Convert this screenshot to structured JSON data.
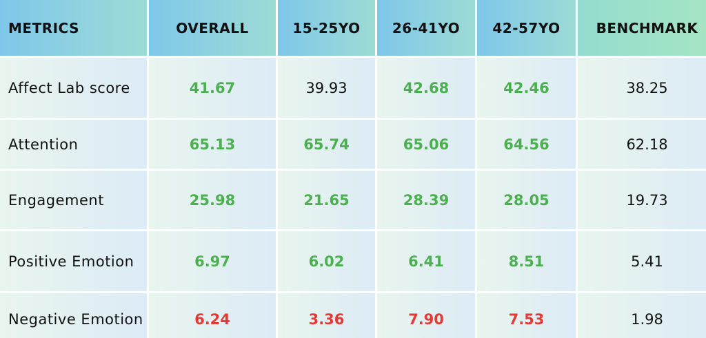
{
  "table": {
    "header": [
      "METRICS",
      "OVERALL",
      "15-25YO",
      "26-41YO",
      "42-57YO",
      "BENCHMARK"
    ],
    "rows": [
      [
        "Affect Lab score",
        {
          "value": "41.67",
          "color": "#4caf50"
        },
        "39.93",
        {
          "value": "42.68",
          "color": "#4caf50"
        },
        {
          "value": "42.46",
          "color": "#4caf50"
        },
        "38.25"
      ],
      [
        "Attention",
        {
          "value": "65.13",
          "color": "#4caf50"
        },
        {
          "value": "65.74",
          "color": "#4caf50"
        },
        {
          "value": "65.06",
          "color": "#4caf50"
        },
        {
          "value": "64.56",
          "color": "#4caf50"
        },
        "62.18"
      ],
      [
        "Engagement",
        {
          "value": "25.98",
          "color": "#4caf50"
        },
        {
          "value": "21.65",
          "color": "#4caf50"
        },
        {
          "value": "28.39",
          "color": "#4caf50"
        },
        {
          "value": "28.05",
          "color": "#4caf50"
        },
        "19.73"
      ],
      [
        "Positive Emotion",
        {
          "value": "6.97",
          "color": "#4caf50"
        },
        {
          "value": "6.02",
          "color": "#4caf50"
        },
        {
          "value": "6.41",
          "color": "#4caf50"
        },
        {
          "value": "8.51",
          "color": "#4caf50"
        },
        "5.41"
      ],
      [
        "Negative Emotion",
        {
          "value": "6.24",
          "color": "#e53935"
        },
        {
          "value": "3.36",
          "color": "#e53935"
        },
        {
          "value": "7.90",
          "color": "#e53935"
        },
        {
          "value": "7.53",
          "color": "#e53935"
        },
        "1.98"
      ]
    ]
  }
}
